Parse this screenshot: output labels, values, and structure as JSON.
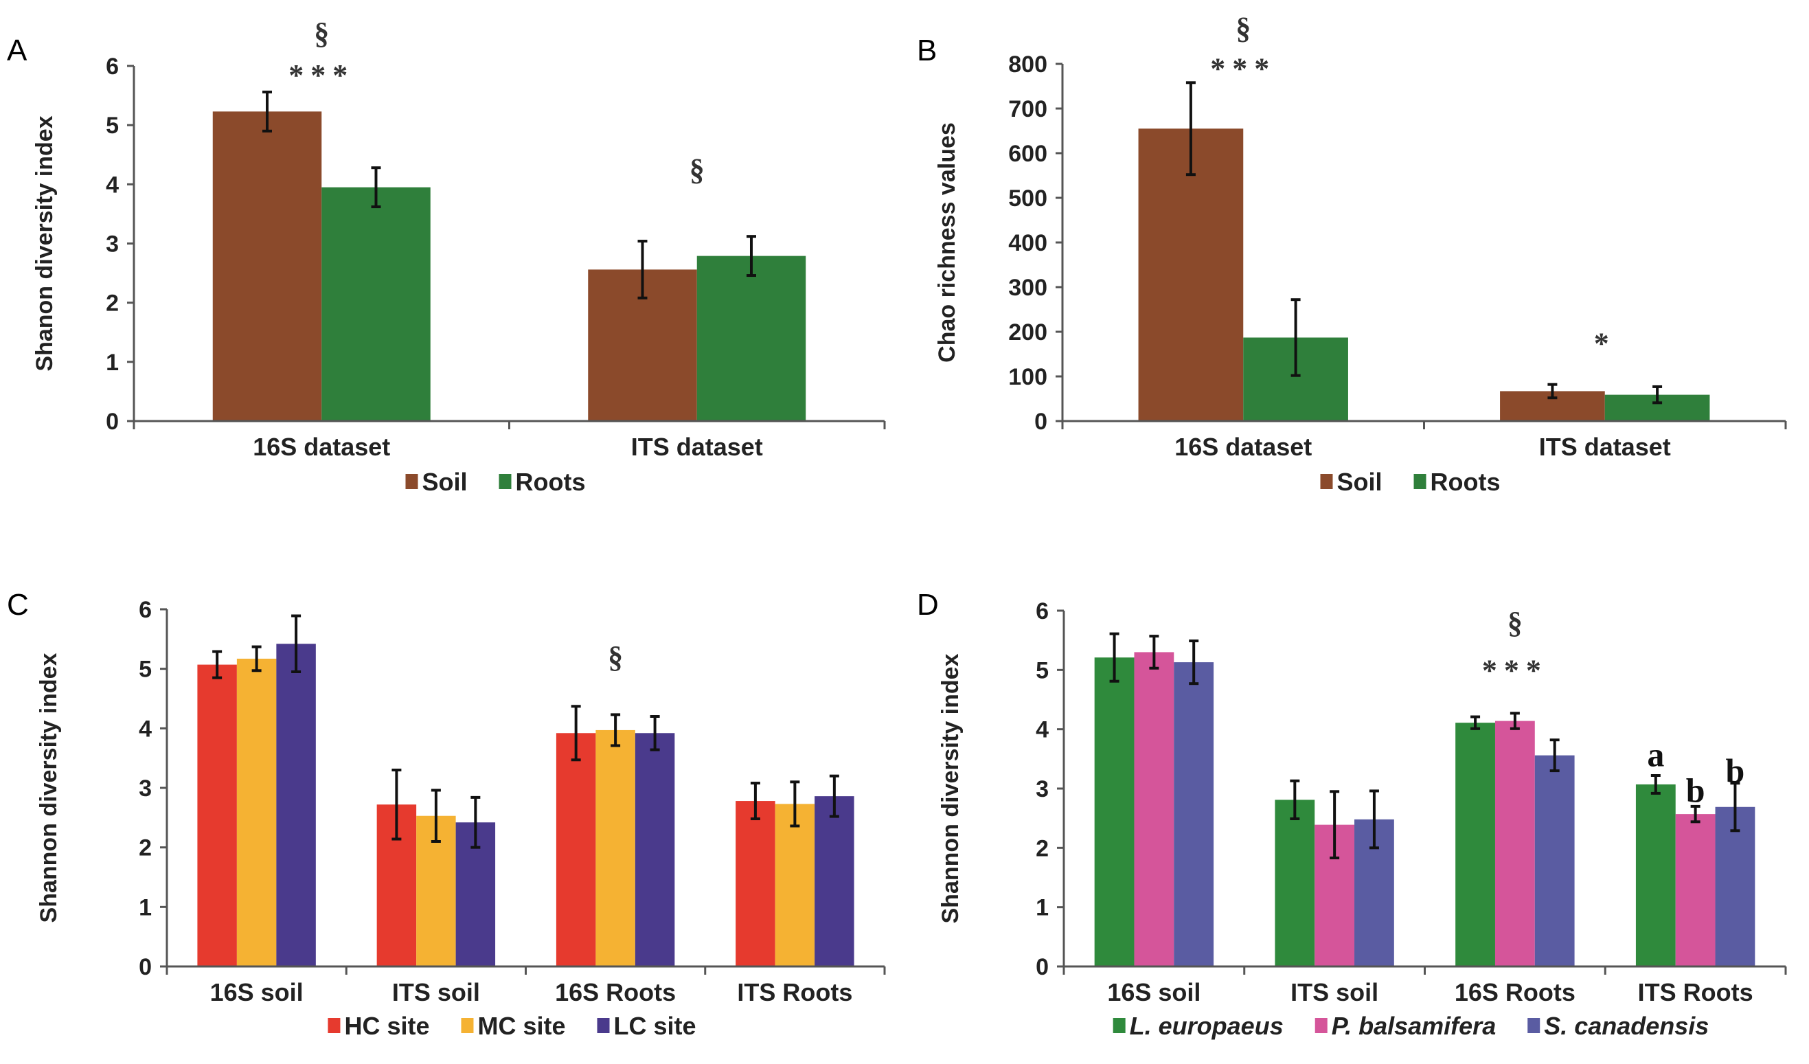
{
  "chart_data": [
    {
      "panel": "A",
      "type": "bar",
      "ylabel": "Shanon diversity index",
      "ylim": [
        0,
        6
      ],
      "yticks": [
        0,
        1,
        2,
        3,
        4,
        5,
        6
      ],
      "categories": [
        "16S dataset",
        "ITS dataset"
      ],
      "series": [
        {
          "name": "Soil",
          "color": "#8B4A2B",
          "values": [
            5.23,
            2.56
          ],
          "errors": [
            0.33,
            0.48
          ]
        },
        {
          "name": "Roots",
          "color": "#2F7F3B",
          "values": [
            3.95,
            2.79
          ],
          "errors": [
            0.33,
            0.33
          ]
        }
      ],
      "annotations": [
        {
          "text": "§",
          "category": 0,
          "y": 6.55
        },
        {
          "text": "***",
          "category": 0,
          "y": 5.85
        },
        {
          "text": "§",
          "category": 1,
          "y": 4.25
        }
      ],
      "legend": "bottom"
    },
    {
      "panel": "B",
      "type": "bar",
      "ylabel": "Chao richness values",
      "ylim": [
        0,
        800
      ],
      "yticks": [
        0,
        100,
        200,
        300,
        400,
        500,
        600,
        700,
        800
      ],
      "categories": [
        "16S dataset",
        "ITS dataset"
      ],
      "series": [
        {
          "name": "Soil",
          "color": "#8B4A2B",
          "values": [
            655,
            67
          ],
          "errors": [
            103,
            15
          ]
        },
        {
          "name": "Roots",
          "color": "#2F7F3B",
          "values": [
            187,
            59
          ],
          "errors": [
            85,
            18
          ]
        }
      ],
      "annotations": [
        {
          "text": "§",
          "category": 0,
          "y": 880
        },
        {
          "text": "***",
          "category": 0,
          "y": 790
        },
        {
          "text": "*",
          "category": 1,
          "y": 175
        }
      ],
      "legend": "bottom"
    },
    {
      "panel": "C",
      "type": "bar",
      "ylabel": "Shannon diversity index",
      "ylim": [
        0,
        6
      ],
      "yticks": [
        0,
        1,
        2,
        3,
        4,
        5,
        6
      ],
      "categories": [
        "16S soil",
        "ITS soil",
        "16S Roots",
        "ITS Roots"
      ],
      "series": [
        {
          "name": "HC site",
          "color": "#E63A2E",
          "values": [
            5.07,
            2.72,
            3.92,
            2.78
          ],
          "errors": [
            0.22,
            0.58,
            0.45,
            0.3
          ]
        },
        {
          "name": "MC site",
          "color": "#F5B233",
          "values": [
            5.17,
            2.53,
            3.97,
            2.73
          ],
          "errors": [
            0.2,
            0.43,
            0.26,
            0.37
          ]
        },
        {
          "name": "LC site",
          "color": "#4A3A8C",
          "values": [
            5.42,
            2.42,
            3.92,
            2.86
          ],
          "errors": [
            0.47,
            0.42,
            0.28,
            0.34
          ]
        }
      ],
      "annotations": [
        {
          "text": "§",
          "category": 2,
          "y": 5.2
        }
      ],
      "legend": "bottom"
    },
    {
      "panel": "D",
      "type": "bar",
      "ylabel": "Shannon diversity index",
      "ylim": [
        0,
        6
      ],
      "yticks": [
        0,
        1,
        2,
        3,
        4,
        5,
        6
      ],
      "categories": [
        "16S soil",
        "ITS soil",
        "16S Roots",
        "ITS Roots"
      ],
      "series": [
        {
          "name": "L. europaeus",
          "color": "#2F8A3C",
          "values": [
            5.21,
            2.81,
            4.11,
            3.07
          ],
          "errors": [
            0.4,
            0.32,
            0.1,
            0.15
          ]
        },
        {
          "name": "P. balsamifera",
          "color": "#D5559A",
          "values": [
            5.3,
            2.39,
            4.14,
            2.57
          ],
          "errors": [
            0.27,
            0.56,
            0.13,
            0.13
          ]
        },
        {
          "name": "S. canadensis",
          "color": "#5A5CA2",
          "values": [
            5.13,
            2.48,
            3.56,
            2.69
          ],
          "errors": [
            0.36,
            0.48,
            0.26,
            0.4
          ]
        }
      ],
      "annotations": [
        {
          "text": "§",
          "category": 2,
          "y": 5.8
        },
        {
          "text": "***",
          "category": 2,
          "y": 5.0
        },
        {
          "text": "a",
          "category": 3,
          "series": 0,
          "y": 3.55
        },
        {
          "text": "b",
          "category": 3,
          "series": 1,
          "y": 2.95
        },
        {
          "text": "b",
          "category": 3,
          "series": 2,
          "y": 3.28
        }
      ],
      "legend": "bottom",
      "legend_italic": true
    }
  ]
}
